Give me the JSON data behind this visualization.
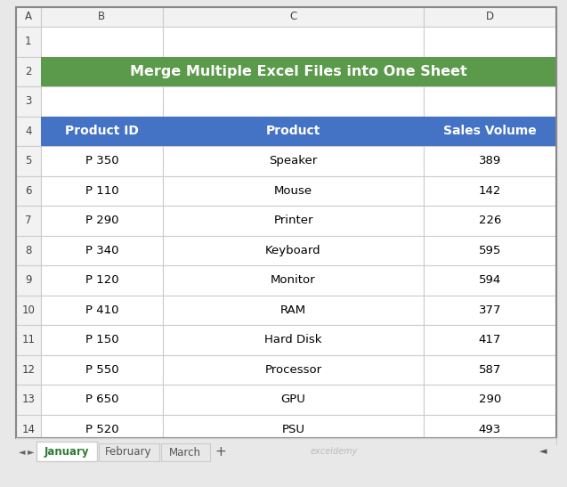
{
  "title": "Merge Multiple Excel Files into One Sheet",
  "title_bg": "#5B9A4A",
  "title_text_color": "#FFFFFF",
  "header_bg": "#4472C4",
  "header_text_color": "#FFFFFF",
  "headers": [
    "Product ID",
    "Product",
    "Sales Volume"
  ],
  "rows": [
    [
      "P 350",
      "Speaker",
      "389"
    ],
    [
      "P 110",
      "Mouse",
      "142"
    ],
    [
      "P 290",
      "Printer",
      "226"
    ],
    [
      "P 340",
      "Keyboard",
      "595"
    ],
    [
      "P 120",
      "Monitor",
      "594"
    ],
    [
      "P 410",
      "RAM",
      "377"
    ],
    [
      "P 150",
      "Hard Disk",
      "417"
    ],
    [
      "P 550",
      "Processor",
      "587"
    ],
    [
      "P 650",
      "GPU",
      "290"
    ],
    [
      "P 520",
      "PSU",
      "493"
    ]
  ],
  "col_labels": [
    "A",
    "B",
    "C",
    "D"
  ],
  "row_labels": [
    "1",
    "2",
    "3",
    "4",
    "5",
    "6",
    "7",
    "8",
    "9",
    "10",
    "11",
    "12",
    "13",
    "14"
  ],
  "spreadsheet_bg": "#FFFFFF",
  "col_header_bg": "#F2F2F2",
  "grid_color": "#CCCCCC",
  "cell_text_color": "#000000",
  "tab_active_text": "#2E7D32",
  "tab_inactive_text": "#555555",
  "tabs": [
    "January",
    "February",
    "March"
  ],
  "outer_bg": "#E8E8E8"
}
